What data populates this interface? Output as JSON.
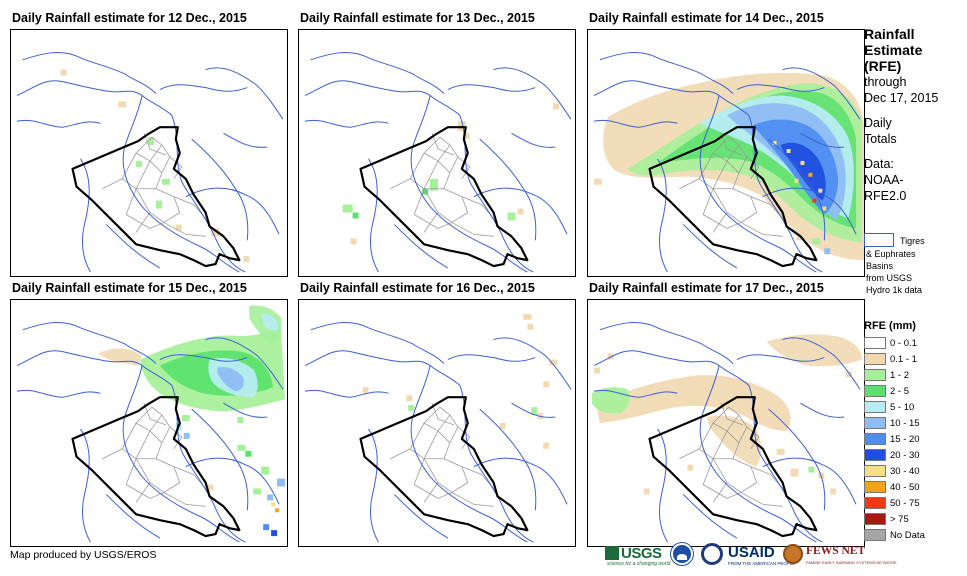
{
  "panels": [
    {
      "title": "Daily Rainfall estimate for 12 Dec., 2015"
    },
    {
      "title": "Daily Rainfall estimate for 13 Dec., 2015"
    },
    {
      "title": "Daily Rainfall estimate for 14 Dec., 2015"
    },
    {
      "title": "Daily Rainfall estimate for 15 Dec., 2015"
    },
    {
      "title": "Daily Rainfall estimate for 16 Dec., 2015"
    },
    {
      "title": "Daily Rainfall estimate for 17 Dec., 2015"
    }
  ],
  "side": {
    "title_lines": [
      "Rainfall",
      "Estimate",
      "(RFE)"
    ],
    "through_lines": [
      "through",
      "Dec 17, 2015"
    ],
    "totals_lines": [
      "Daily",
      "Totals"
    ],
    "data_lines": [
      "Data:",
      "NOAA-",
      "RFE2.0"
    ]
  },
  "basins": {
    "first_line": "Tigres",
    "more_lines": [
      "& Euphrates",
      "Basins",
      "from USGS",
      "Hydro 1k data"
    ],
    "outline_color": "#3c5fd2"
  },
  "legend": {
    "title": "RFE (mm)",
    "items": [
      {
        "label": "0 - 0.1",
        "color": "#ffffff"
      },
      {
        "label": "0.1 - 1",
        "color": "#f1d9b2"
      },
      {
        "label": "1 - 2",
        "color": "#a6f09a"
      },
      {
        "label": "2 - 5",
        "color": "#59e16d"
      },
      {
        "label": "5 - 10",
        "color": "#b7ecf3"
      },
      {
        "label": "10 - 15",
        "color": "#8fbdf3"
      },
      {
        "label": "15 - 20",
        "color": "#4f8ef0"
      },
      {
        "label": "20 - 30",
        "color": "#1f4fde"
      },
      {
        "label": "30 - 40",
        "color": "#f6e083"
      },
      {
        "label": "40 - 50",
        "color": "#f7a21c"
      },
      {
        "label": "50 - 75",
        "color": "#ef3a0e"
      },
      {
        "label": "> 75",
        "color": "#a61b10"
      },
      {
        "label": "No Data",
        "color": "#a6a6a6"
      }
    ]
  },
  "credit": "Map produced by USGS/EROS",
  "logos": {
    "usgs": "USGS",
    "usgs_tag": "science for a changing world",
    "usaid": "USAID",
    "usaid_tag": "FROM THE AMERICAN PEOPLE",
    "fews": "FEWS NET",
    "fews_tag": "FAMINE EARLY WARNING SYSTEMS NETWORK",
    "icons": [
      "noaa-logo",
      "doi-seal",
      "fews-globe"
    ]
  }
}
